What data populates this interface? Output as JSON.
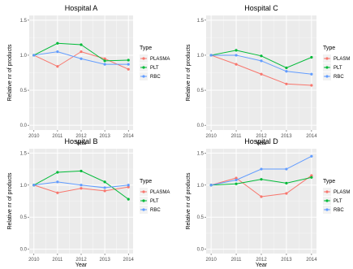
{
  "chart_data": [
    {
      "type": "line",
      "title": "Hospital A",
      "xlabel": "Year",
      "ylabel": "Relative nr of products",
      "x": [
        2010,
        2011,
        2012,
        2013,
        2014
      ],
      "xticks": [
        "2010",
        "2011",
        "2012",
        "2013",
        "2014"
      ],
      "ylim": [
        0,
        1.5
      ],
      "yticks": [
        "0.0",
        "0.5",
        "1.0",
        "1.5"
      ],
      "legend_title": "Type",
      "legend_position": "right",
      "series": [
        {
          "name": "PLASMA",
          "color": "#F8766D",
          "values": [
            1.0,
            0.84,
            1.05,
            0.95,
            0.8
          ]
        },
        {
          "name": "PLT",
          "color": "#00BA38",
          "values": [
            1.0,
            1.17,
            1.15,
            0.92,
            0.93
          ]
        },
        {
          "name": "RBC",
          "color": "#619CFF",
          "values": [
            1.0,
            1.05,
            0.95,
            0.87,
            0.87
          ]
        }
      ]
    },
    {
      "type": "line",
      "title": "Hospital C",
      "xlabel": "Year",
      "ylabel": "Relative nr of products",
      "x": [
        2010,
        2011,
        2012,
        2013,
        2014
      ],
      "xticks": [
        "2010",
        "2011",
        "2012",
        "2013",
        "2014"
      ],
      "ylim": [
        0,
        1.5
      ],
      "yticks": [
        "0.0",
        "0.5",
        "1.0",
        "1.5"
      ],
      "legend_title": "Type",
      "legend_position": "right",
      "series": [
        {
          "name": "PLASM",
          "color": "#F8766D",
          "values": [
            1.0,
            0.87,
            0.73,
            0.59,
            0.57
          ]
        },
        {
          "name": "PLT",
          "color": "#00BA38",
          "values": [
            1.0,
            1.07,
            0.99,
            0.82,
            0.97
          ]
        },
        {
          "name": "RBC",
          "color": "#619CFF",
          "values": [
            1.0,
            1.0,
            0.92,
            0.77,
            0.73
          ]
        }
      ]
    },
    {
      "type": "line",
      "title": "Hospital B",
      "xlabel": "Year",
      "ylabel": "Relative nr of products",
      "x": [
        2010,
        2011,
        2012,
        2013,
        2014
      ],
      "xticks": [
        "2010",
        "2011",
        "2012",
        "2013",
        "2014"
      ],
      "ylim": [
        0,
        1.5
      ],
      "yticks": [
        "0.0",
        "0.5",
        "1.0",
        "1.5"
      ],
      "legend_title": "Type",
      "legend_position": "right",
      "series": [
        {
          "name": "PLASMA",
          "color": "#F8766D",
          "values": [
            1.0,
            0.88,
            0.95,
            0.91,
            0.97
          ]
        },
        {
          "name": "PLT",
          "color": "#00BA38",
          "values": [
            1.0,
            1.2,
            1.22,
            1.05,
            0.78
          ]
        },
        {
          "name": "RBC",
          "color": "#619CFF",
          "values": [
            1.0,
            1.05,
            1.0,
            0.96,
            1.0
          ]
        }
      ]
    },
    {
      "type": "line",
      "title": "Hospital D",
      "xlabel": "Year",
      "ylabel": "Relative nr of products",
      "x": [
        2010,
        2011,
        2012,
        2013,
        2014
      ],
      "xticks": [
        "2010",
        "2011",
        "2012",
        "2013",
        "2014"
      ],
      "ylim": [
        0,
        1.5
      ],
      "yticks": [
        "0.0",
        "0.5",
        "1.0",
        "1.5"
      ],
      "legend_title": "Type",
      "legend_position": "right",
      "series": [
        {
          "name": "PLASM",
          "color": "#F8766D",
          "values": [
            1.0,
            1.11,
            0.82,
            0.87,
            1.15
          ]
        },
        {
          "name": "PLT",
          "color": "#00BA38",
          "values": [
            1.0,
            1.02,
            1.09,
            1.03,
            1.12
          ]
        },
        {
          "name": "RBC",
          "color": "#619CFF",
          "values": [
            1.0,
            1.08,
            1.25,
            1.25,
            1.45
          ]
        }
      ]
    }
  ]
}
